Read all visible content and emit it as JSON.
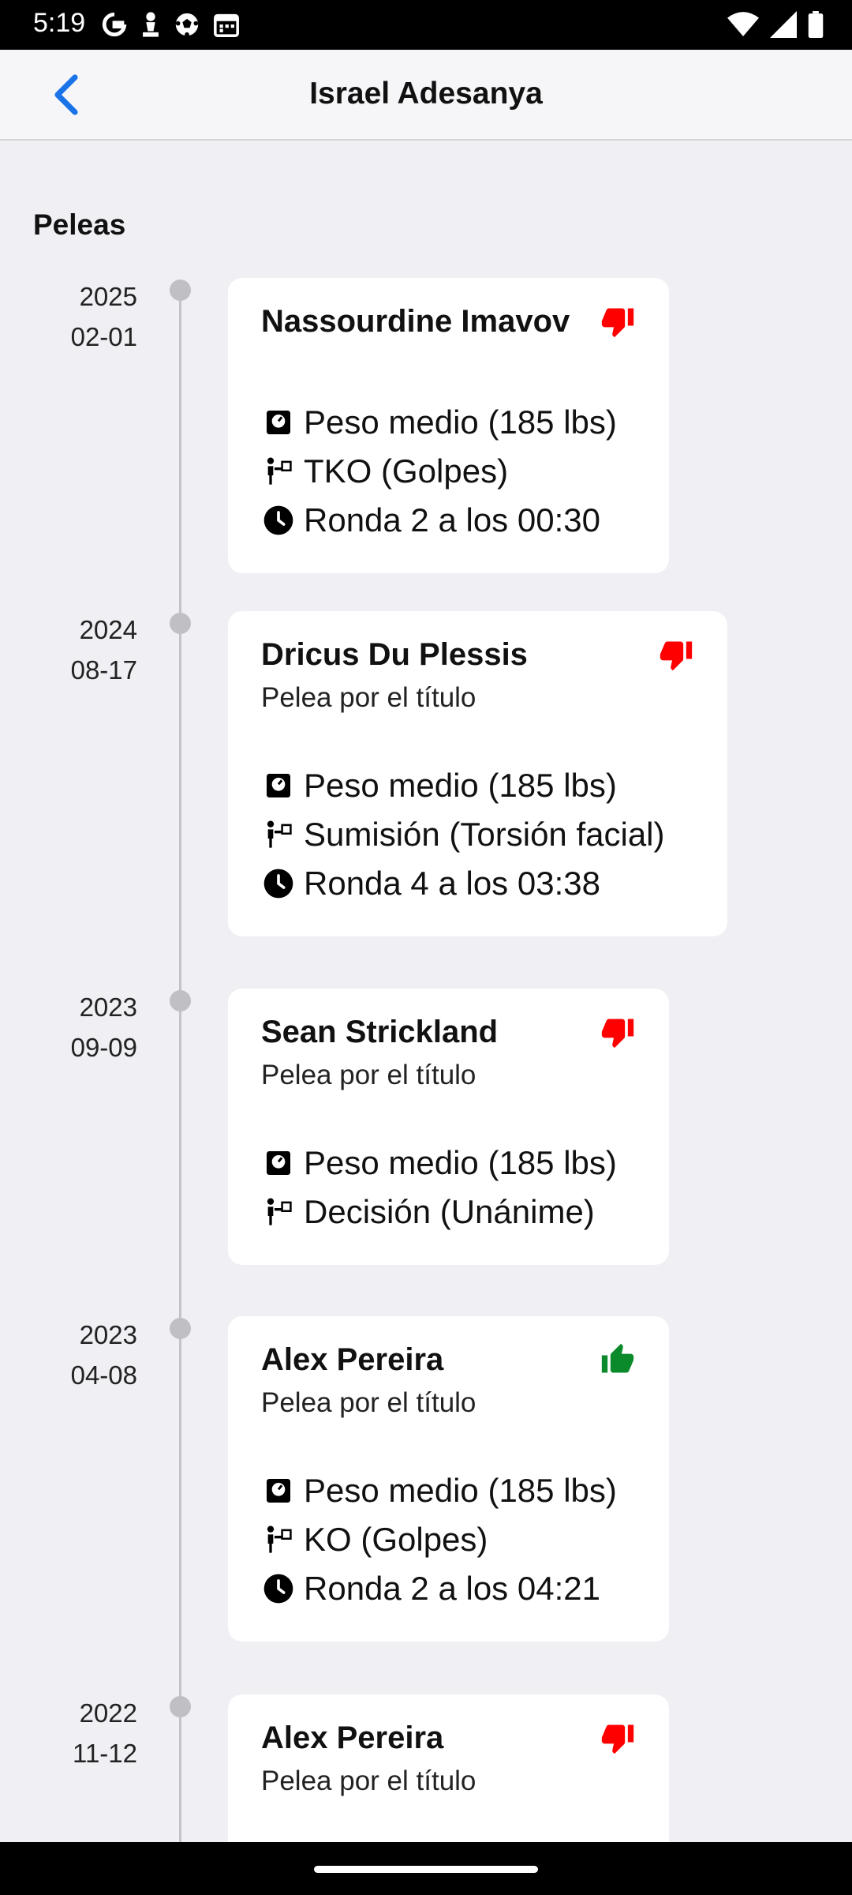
{
  "status_bar": {
    "time": "5:19",
    "left_icons": [
      "google-g-icon",
      "chess-pawn-icon",
      "soccer-ball-icon",
      "calendar-icon"
    ],
    "right_icons": [
      "wifi-icon",
      "signal-icon",
      "battery-icon"
    ]
  },
  "header": {
    "title": "Israel Adesanya",
    "back_icon": "chevron-left-icon",
    "accent_color": "#1a73e8"
  },
  "section": {
    "title": "Peleas"
  },
  "colors": {
    "loss": "#ff0000",
    "win": "#0a8a2a",
    "timeline": "#c4c4c8"
  },
  "fights": [
    {
      "year": "2025",
      "date": "02-01",
      "opponent": "Nassourdine Imavov",
      "result": "loss",
      "subtitle": "",
      "weight": "Peso medio (185 lbs)",
      "method": "TKO (Golpes)",
      "time": "Ronda 2 a los 00:30"
    },
    {
      "year": "2024",
      "date": "08-17",
      "opponent": "Dricus Du Plessis",
      "result": "loss",
      "subtitle": "Pelea por el título",
      "weight": "Peso medio (185 lbs)",
      "method": "Sumisión (Torsión facial)",
      "time": "Ronda 4 a los 03:38"
    },
    {
      "year": "2023",
      "date": "09-09",
      "opponent": "Sean Strickland",
      "result": "loss",
      "subtitle": "Pelea por el título",
      "weight": "Peso medio (185 lbs)",
      "method": "Decisión (Unánime)",
      "time": ""
    },
    {
      "year": "2023",
      "date": "04-08",
      "opponent": "Alex Pereira",
      "result": "win",
      "subtitle": "Pelea por el título",
      "weight": "Peso medio (185 lbs)",
      "method": "KO (Golpes)",
      "time": "Ronda 2 a los 04:21"
    },
    {
      "year": "2022",
      "date": "11-12",
      "opponent": "Alex Pereira",
      "result": "loss",
      "subtitle": "Pelea por el título",
      "weight": "",
      "method": "",
      "time": ""
    }
  ]
}
